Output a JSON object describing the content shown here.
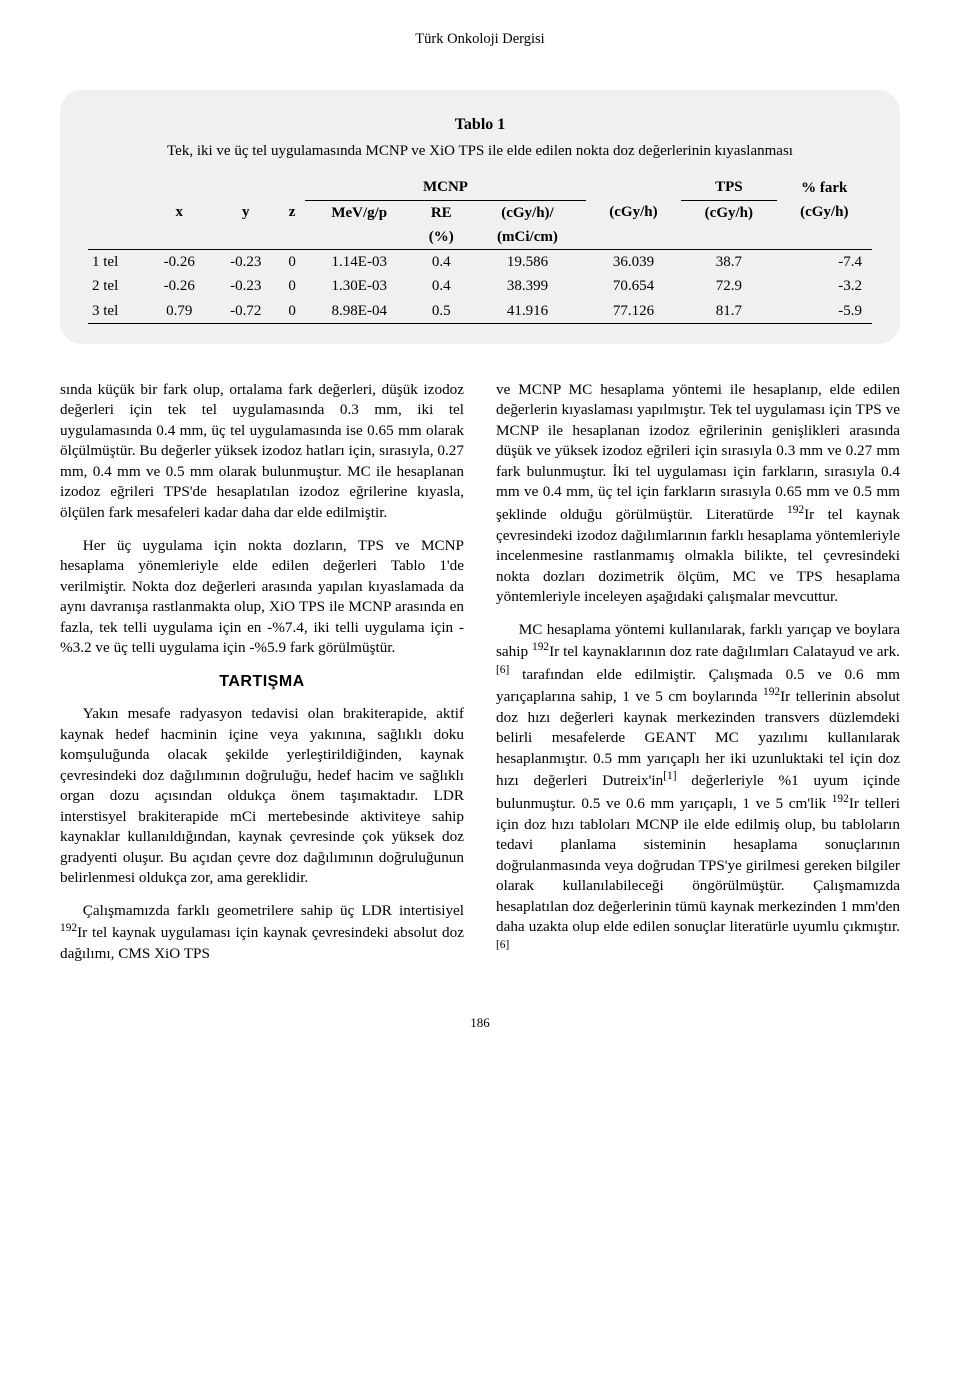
{
  "journal_title": "Türk Onkoloji Dergisi",
  "table": {
    "title": "Tablo 1",
    "subtitle": "Tek, iki ve üç tel uygulamasında MCNP ve XiO TPS ile elde edilen nokta doz değerlerinin kıyaslanması",
    "group_headers": {
      "mcnp": "MCNP",
      "tps": "TPS",
      "fark": "% fark"
    },
    "sub_headers": {
      "x": "x",
      "y": "y",
      "z": "z",
      "mev": "MeV/g/p",
      "re": "RE",
      "cgyh_mci": "(cGy/h)/",
      "cgyh1": "(cGy/h)",
      "cgyh2": "(cGy/h)",
      "cgyh3": "(cGy/h)"
    },
    "sub_headers2": {
      "re_pct": "(%)",
      "mcicm": "(mCi/cm)"
    },
    "rows": [
      {
        "label": "1 tel",
        "x": "-0.26",
        "y": "-0.23",
        "z": "0",
        "mev": "1.14E-03",
        "re": "0.4",
        "cgy_mci": "19.586",
        "cgy1": "36.039",
        "cgy2": "38.7",
        "fark": "-7.4"
      },
      {
        "label": "2 tel",
        "x": "-0.26",
        "y": "-0.23",
        "z": "0",
        "mev": "1.30E-03",
        "re": "0.4",
        "cgy_mci": "38.399",
        "cgy1": "70.654",
        "cgy2": "72.9",
        "fark": "-3.2"
      },
      {
        "label": "3 tel",
        "x": "0.79",
        "y": "-0.72",
        "z": "0",
        "mev": "8.98E-04",
        "re": "0.5",
        "cgy_mci": "41.916",
        "cgy1": "77.126",
        "cgy2": "81.7",
        "fark": "-5.9"
      }
    ],
    "colors": {
      "card_bg": "#f0f0f0",
      "border": "#000000"
    }
  },
  "body": {
    "p1": "sında küçük bir fark olup, ortalama fark değerleri, düşük izodoz değerleri için tek tel uygulamasında 0.3 mm, iki tel uygulamasında 0.4 mm, üç tel uygulamasında ise 0.65 mm olarak ölçülmüştür. Bu değerler yüksek izodoz hatları için, sırasıyla, 0.27 mm, 0.4 mm ve 0.5 mm olarak bulunmuştur. MC ile hesaplanan izodoz eğrileri TPS'de hesaplatılan izodoz eğrilerine kıyasla, ölçülen fark mesafeleri kadar daha dar elde edilmiştir.",
    "p2": "Her üç uygulama için nokta dozların, TPS ve MCNP hesaplama yönemleriyle elde edilen değerleri Tablo 1'de verilmiştir. Nokta doz değerleri arasında yapılan kıyaslamada da aynı davranışa rastlanmakta olup, XiO TPS ile MCNP arasında en fazla, tek telli uygulama için en -%7.4, iki telli uygulama için -%3.2 ve üç telli uygulama için -%5.9 fark görülmüştür.",
    "h1": "TARTIŞMA",
    "p3": "Yakın mesafe radyasyon tedavisi olan brakiterapide, aktif kaynak hedef hacminin içine veya yakınına, sağlıklı doku komşuluğunda olacak şekilde yerleştirildiğinden, kaynak çevresindeki doz dağılımının doğruluğu, hedef hacim ve sağlıklı organ dozu açısından oldukça önem taşımaktadır. LDR interstisyel brakiterapide mCi mertebesinde aktiviteye sahip kaynaklar kullanıldığından, kaynak çevresinde çok yüksek doz gradyenti oluşur. Bu açıdan çevre doz dağılımının doğruluğunun belirlenmesi oldukça zor, ama gereklidir.",
    "p4_pre": "Çalışmamızda farklı geometrilere sahip üç LDR intertisiyel ",
    "p4_sup": "192",
    "p4_post": "Ir tel kaynak uygulaması için kaynak çevresindeki absolut doz dağılımı, CMS XiO TPS",
    "p5_pre": "ve MCNP MC hesaplama yöntemi ile hesaplanıp, elde edilen değerlerin kıyaslaması yapılmıştır. Tek tel uygulaması için TPS ve MCNP ile hesaplanan izodoz eğrilerinin genişlikleri arasında düşük ve yüksek izodoz eğrileri için sırasıyla 0.3 mm ve 0.27 mm fark bulunmuştur. İki tel uygulaması için farkların, sırasıyla 0.4 mm ve 0.4 mm, üç tel için farkların sırasıyla 0.65 mm ve 0.5 mm şeklinde olduğu görülmüştür. Literatürde ",
    "p5_sup": "192",
    "p5_post": "Ir tel kaynak çevresindeki izodoz dağılımlarının farklı hesaplama yöntemleriyle incelenmesine rastlanmamış olmakla bilikte, tel çevresindeki nokta dozları dozimetrik ölçüm, MC ve TPS hesaplama yöntemleriyle inceleyen aşağıdaki çalışmalar mevcuttur.",
    "p6_a": "MC hesaplama yöntemi kullanılarak, farklı yarıçap ve boylara sahip ",
    "p6_sup1": "192",
    "p6_b": "Ir tel kaynaklarının doz rate dağılımları Calatayud ve ark.",
    "p6_ref1": "[6]",
    "p6_c": " tarafından elde edilmiştir. Çalışmada 0.5 ve 0.6 mm yarıçaplarına sahip, 1 ve 5 cm boylarında ",
    "p6_sup2": "192",
    "p6_d": "Ir tellerinin absolut doz hızı değerleri kaynak merkezinden transvers düzlemdeki belirli mesafelerde GEANT MC yazılımı kullanılarak hesaplanmıştır. 0.5 mm yarıçaplı her iki uzunluktaki tel için doz hızı değerleri Dutreix'in",
    "p6_ref2": "[1]",
    "p6_e": " değerleriyle %1 uyum içinde bulunmuştur. 0.5 ve 0.6 mm yarıçaplı, 1 ve 5 cm'lik ",
    "p6_sup3": "192",
    "p6_f": "Ir telleri için doz hızı tabloları MCNP ile elde edilmiş olup, bu tabloların tedavi planlama sisteminin hesaplama sonuçlarının doğrulanmasında veya doğrudan TPS'ye girilmesi gereken bilgiler olarak kullanılabileceği öngörülmüştür. Çalışmamızda hesaplatılan doz değerlerinin tümü kaynak merkezinden 1 mm'den daha uzakta olup elde edilen sonuçlar literatürle uyumlu çıkmıştır.",
    "p6_ref3": "[6]"
  },
  "page_number": "186"
}
